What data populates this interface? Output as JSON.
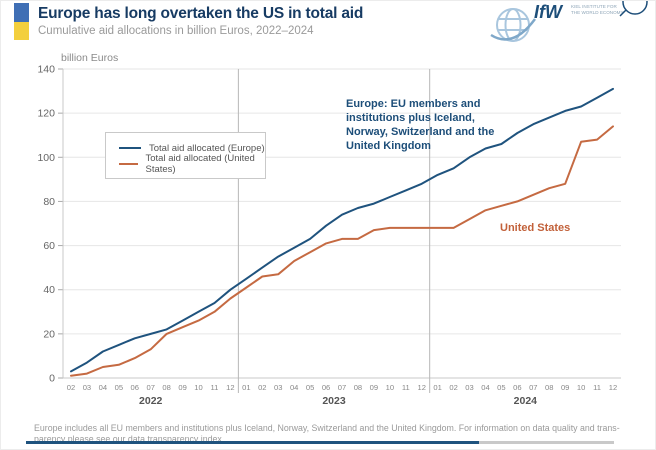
{
  "header": {
    "title": "Europe has long overtaken the US in total aid",
    "subtitle": "Cumulative aid allocations in billion Euros, 2022–2024",
    "flag_colors": {
      "top": "#3f6fb5",
      "bottom": "#f3cf3d"
    },
    "logo": {
      "name": "IfW",
      "institute_line1": "KIEL INSTITUTE FOR",
      "institute_line2": "THE WORLD ECONOMY"
    }
  },
  "chart_data": {
    "type": "line",
    "unit_label": "billion Euros",
    "ylim": [
      0,
      140
    ],
    "ytick_step": 20,
    "grid": true,
    "x_labels": [
      "02",
      "03",
      "04",
      "05",
      "06",
      "07",
      "08",
      "09",
      "10",
      "11",
      "12",
      "01",
      "02",
      "03",
      "04",
      "05",
      "06",
      "07",
      "08",
      "09",
      "10",
      "11",
      "12",
      "01",
      "02",
      "03",
      "04",
      "05",
      "06",
      "07",
      "08",
      "09",
      "10",
      "11",
      "12"
    ],
    "years": [
      {
        "label": "2022",
        "start": 0,
        "end": 10
      },
      {
        "label": "2023",
        "start": 11,
        "end": 22
      },
      {
        "label": "2024",
        "start": 23,
        "end": 34
      }
    ],
    "series": [
      {
        "name": "Total aid allocated (Europe)",
        "color": "#1f537e",
        "values": [
          3,
          7,
          12,
          15,
          18,
          20,
          22,
          26,
          30,
          34,
          40,
          45,
          50,
          55,
          59,
          63,
          69,
          74,
          77,
          79,
          82,
          85,
          88,
          92,
          95,
          100,
          104,
          106,
          111,
          115,
          118,
          121,
          123,
          127,
          131
        ]
      },
      {
        "name": "Total aid allocated (United States)",
        "color": "#c56a42",
        "values": [
          1,
          2,
          5,
          6,
          9,
          13,
          20,
          23,
          26,
          30,
          36,
          41,
          46,
          47,
          53,
          57,
          61,
          63,
          63,
          67,
          68,
          68,
          68,
          68,
          68,
          72,
          76,
          78,
          80,
          83,
          86,
          88,
          107,
          108,
          114
        ]
      }
    ],
    "legend": {
      "position": "upper-left-inside",
      "entries": [
        "Total aid allocated (Europe)",
        "Total aid allocated (United States)"
      ]
    },
    "annotations": [
      {
        "text": "Europe: EU members and institutions plus Iceland, Norway, Switzerland and the United Kingdom",
        "color": "#1d4e79"
      },
      {
        "text": "United States",
        "color": "#c2613a"
      }
    ]
  },
  "footer": {
    "line1": "Europe includes all EU members and institutions plus Iceland, Norway, Switzerland and the United Kingdom. For information on data quality and trans-",
    "line2": "parency please see our data transparency index.",
    "bar_color": "#1f537e"
  }
}
